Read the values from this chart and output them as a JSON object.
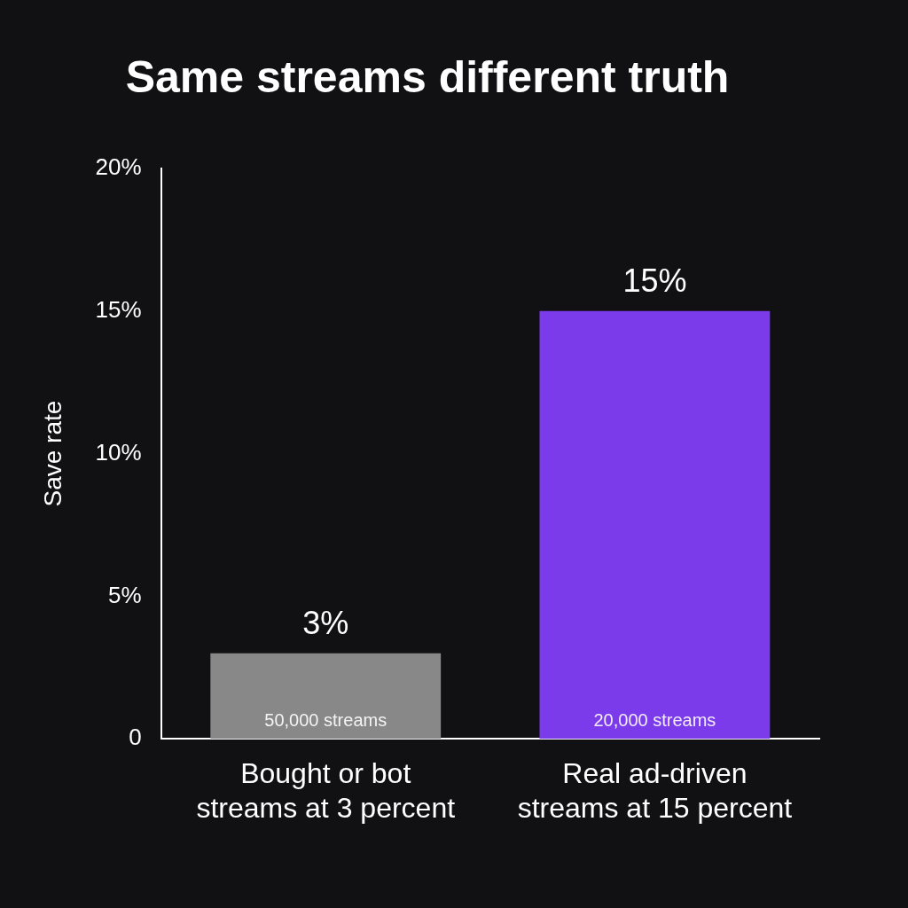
{
  "chart_data": {
    "type": "bar",
    "title": "Same streams different truth",
    "ylabel": "Save rate",
    "categories": [
      "Bought or bot\nstreams at 3 percent",
      "Real ad-driven\nstreams at 15 percent"
    ],
    "values": [
      3,
      15
    ],
    "colors": [
      "#888888",
      "#7b3beb"
    ],
    "value_labels": [
      "3%",
      "15%"
    ],
    "annotations": [
      "50,000 streams",
      "20,000 streams"
    ],
    "ylim": [
      0,
      20
    ],
    "yticks": [
      {
        "value": 0,
        "label": "0"
      },
      {
        "value": 5,
        "label": "5%"
      },
      {
        "value": 10,
        "label": "10%"
      },
      {
        "value": 15,
        "label": "15%"
      },
      {
        "value": 20,
        "label": "20%"
      }
    ],
    "grid": false,
    "legend": false
  }
}
